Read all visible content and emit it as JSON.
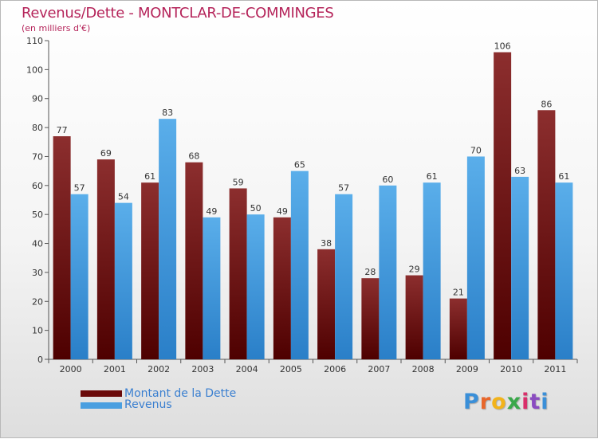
{
  "title": "Revenus/Dette - MONTCLAR-DE-COMMINGES",
  "subtitle": "(en milliers d'€)",
  "logo": "Proxiti",
  "colors": {
    "dette_top": "#8c2e2e",
    "dette_bottom": "#4e0000",
    "revenus_top": "#5aaeea",
    "revenus_bottom": "#2a7fc8",
    "title": "#b5245a",
    "legend_text": "#3a7fd0"
  },
  "legend": [
    {
      "label": "Montant de la Dette",
      "color": "#6a0a0a"
    },
    {
      "label": "Revenus",
      "color": "#4a9fe0"
    }
  ],
  "chart_data": {
    "type": "bar",
    "categories": [
      "2000",
      "2001",
      "2002",
      "2003",
      "2004",
      "2005",
      "2006",
      "2007",
      "2008",
      "2009",
      "2010",
      "2011"
    ],
    "series": [
      {
        "name": "Montant de la Dette",
        "values": [
          77,
          69,
          61,
          68,
          59,
          49,
          38,
          28,
          29,
          21,
          106,
          86
        ]
      },
      {
        "name": "Revenus",
        "values": [
          57,
          54,
          83,
          49,
          50,
          65,
          57,
          60,
          61,
          70,
          63,
          61
        ]
      }
    ],
    "ylim": [
      0,
      110
    ],
    "yticks": [
      0,
      10,
      20,
      30,
      40,
      50,
      60,
      70,
      80,
      90,
      100,
      110
    ],
    "grid": false,
    "legend_position": "bottom-left"
  }
}
